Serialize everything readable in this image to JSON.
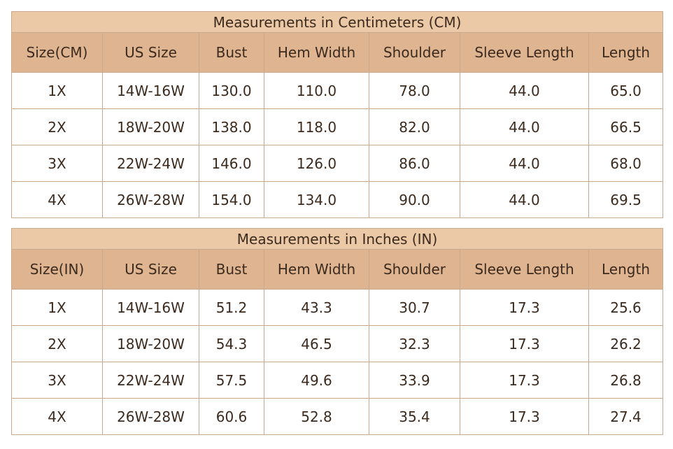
{
  "tables": [
    {
      "title": "Measurements in Centimeters (CM)",
      "header": [
        "Size(CM)",
        "US Size",
        "Bust",
        "Hem Width",
        "Shoulder",
        "Sleeve Length",
        "Length"
      ],
      "rows": [
        [
          "1X",
          "14W-16W",
          "130.0",
          "110.0",
          "78.0",
          "44.0",
          "65.0"
        ],
        [
          "2X",
          "18W-20W",
          "138.0",
          "118.0",
          "82.0",
          "44.0",
          "66.5"
        ],
        [
          "3X",
          "22W-24W",
          "146.0",
          "126.0",
          "86.0",
          "44.0",
          "68.0"
        ],
        [
          "4X",
          "26W-28W",
          "154.0",
          "134.0",
          "90.0",
          "44.0",
          "69.5"
        ]
      ]
    },
    {
      "title": "Measurements in Inches (IN)",
      "header": [
        "Size(IN)",
        "US Size",
        "Bust",
        "Hem Width",
        "Shoulder",
        "Sleeve Length",
        "Length"
      ],
      "rows": [
        [
          "1X",
          "14W-16W",
          "51.2",
          "43.3",
          "30.7",
          "17.3",
          "25.6"
        ],
        [
          "2X",
          "18W-20W",
          "54.3",
          "46.5",
          "32.3",
          "17.3",
          "26.2"
        ],
        [
          "3X",
          "22W-24W",
          "57.5",
          "49.6",
          "33.9",
          "17.3",
          "26.8"
        ],
        [
          "4X",
          "26W-28W",
          "60.6",
          "52.8",
          "35.4",
          "17.3",
          "27.4"
        ]
      ]
    }
  ]
}
